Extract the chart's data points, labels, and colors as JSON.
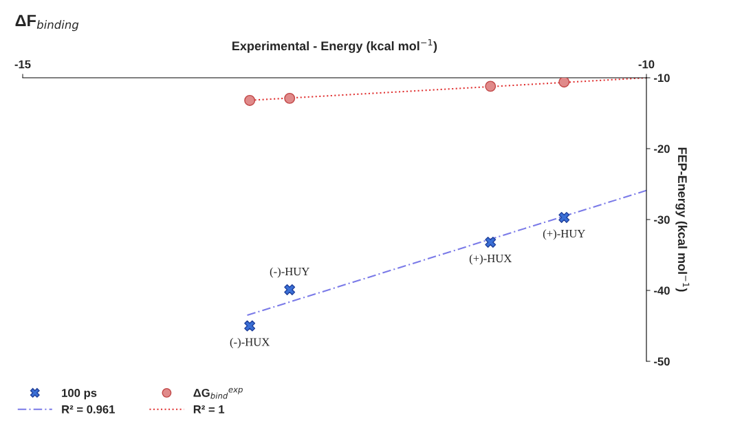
{
  "chart_data": {
    "type": "scatter",
    "title": "ΔF$_{binding}$",
    "xlabel": "Experimental - Energy (kcal mol$^{−1}$)",
    "ylabel": "FEP-Energy (kcal mol$^{−1}$)",
    "xlim": [
      -15,
      -10
    ],
    "xticks": [
      -15,
      -10
    ],
    "ylim": [
      -50,
      -10
    ],
    "yticks": [
      -50,
      -40,
      -30,
      -20,
      -10
    ],
    "grid": false,
    "legend": "bottom left",
    "series": [
      {
        "name": "100 ps",
        "type": "scatter",
        "color": "#3a6fd6",
        "marker": "cross",
        "x": [
          -13.18,
          -12.86,
          -11.25,
          -10.66
        ],
        "values": [
          -45.0,
          -39.9,
          -33.2,
          -29.7
        ]
      },
      {
        "name": "ΔG$_{bind}$$^{exp}$",
        "type": "scatter",
        "color": "#e08a8a",
        "marker": "circle",
        "x": [
          -13.18,
          -12.86,
          -11.25,
          -10.66
        ],
        "values": [
          -13.2,
          -12.9,
          -11.2,
          -10.6
        ]
      },
      {
        "name": "R² = 0.961",
        "type": "line",
        "color": "#7a7ae8",
        "line_style": "dashed",
        "marker": "none",
        "x": [
          -13.2,
          -10
        ],
        "values": [
          -43.5,
          -25.9
        ]
      },
      {
        "name": "R² = 1",
        "type": "line",
        "color": "#e03030",
        "line_style": "dotted",
        "marker": "none",
        "x": [
          -13.2,
          -10
        ],
        "values": [
          -13.2,
          -10
        ]
      }
    ],
    "annotations": [
      {
        "text": "(-)-HUX",
        "x": -13.18,
        "y": -45.0
      },
      {
        "text": "(-)-HUY",
        "x": -12.86,
        "y": -39.9
      },
      {
        "text": "(+)-HUX",
        "x": -11.25,
        "y": -33.2
      },
      {
        "text": "(+)-HUY",
        "x": -10.66,
        "y": -29.7
      }
    ]
  }
}
